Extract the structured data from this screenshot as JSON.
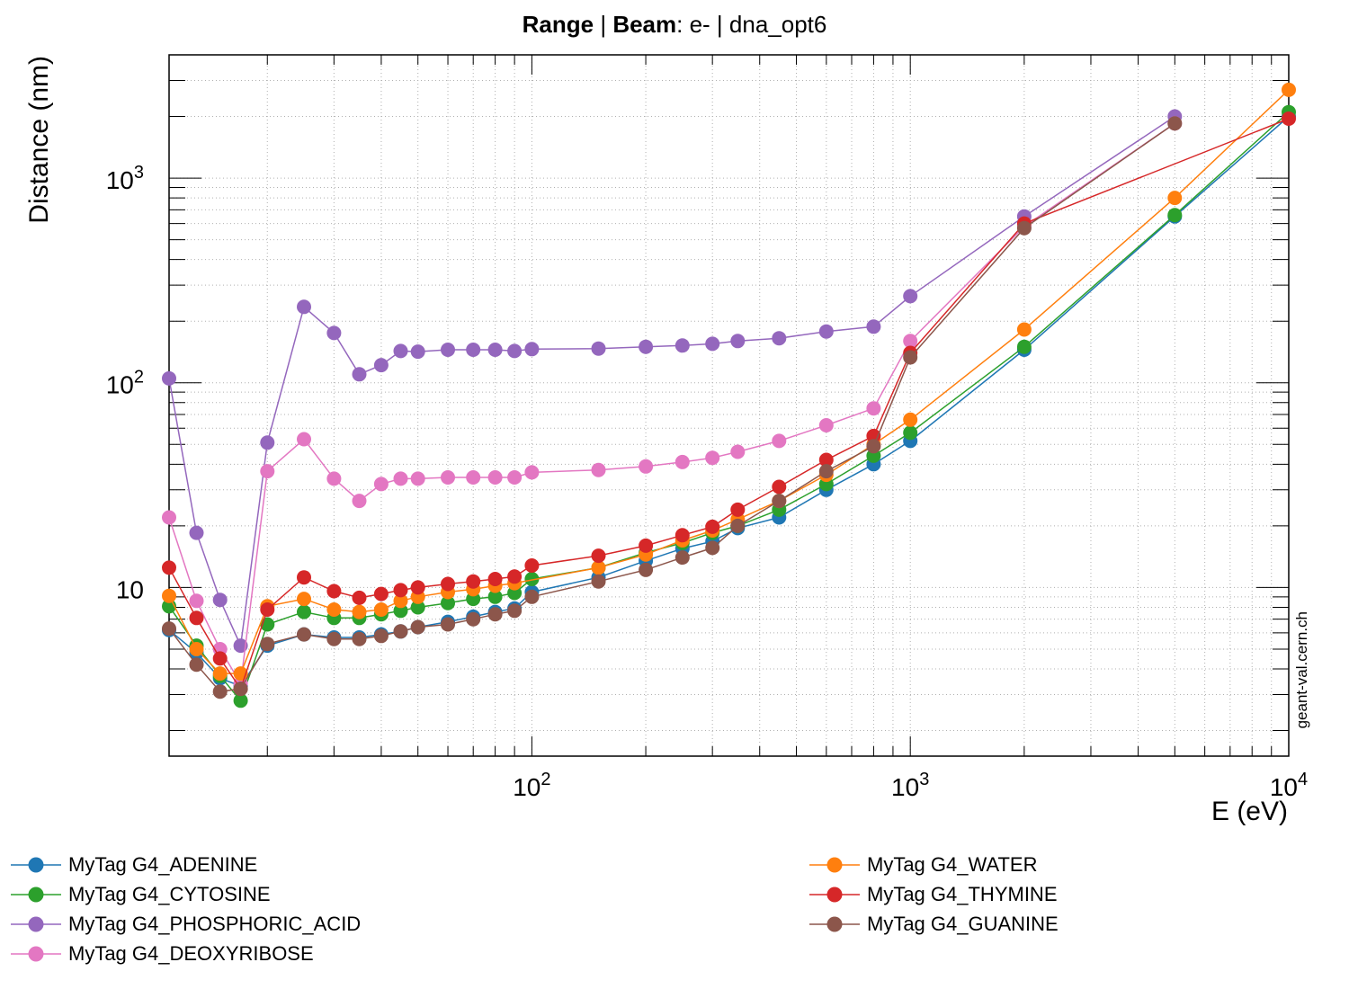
{
  "chart_data": {
    "type": "line",
    "title_parts": [
      {
        "text": "Range",
        "bold": true
      },
      {
        "text": " | ",
        "bold": false
      },
      {
        "text": "Beam",
        "bold": true
      },
      {
        "text": ": e- | dna_opt6",
        "bold": false
      }
    ],
    "xlabel": "E (eV)",
    "ylabel": "Distance (nm)",
    "xscale": "log",
    "yscale": "log",
    "xlim": [
      11,
      10000
    ],
    "ylim": [
      1.5,
      4000
    ],
    "grid": true,
    "x_ticks": [
      {
        "base": "10",
        "exp": "2",
        "v": 100
      },
      {
        "base": "10",
        "exp": "3",
        "v": 1000
      },
      {
        "base": "10",
        "exp": "4",
        "v": 10000
      }
    ],
    "y_ticks": [
      {
        "base": "10",
        "exp": "",
        "v": 10
      },
      {
        "base": "10",
        "exp": "2",
        "v": 100
      },
      {
        "base": "10",
        "exp": "3",
        "v": 1000
      }
    ],
    "watermark": "geant-val.cern.ch",
    "legend_placement": "bottom",
    "x": [
      11,
      13,
      15,
      17,
      20,
      25,
      30,
      35,
      40,
      45,
      50,
      60,
      70,
      80,
      90,
      100,
      150,
      200,
      250,
      300,
      350,
      450,
      600,
      800,
      1000,
      2000,
      5000,
      10000
    ],
    "series": [
      {
        "name": "MyTag G4_ADENINE",
        "color": "#1f77b4",
        "values": [
          6.2,
          4.8,
          3.6,
          3.3,
          5.2,
          5.9,
          5.7,
          5.7,
          5.9,
          6.1,
          6.4,
          6.8,
          7.2,
          7.6,
          7.9,
          9.5,
          11.2,
          13.5,
          15.5,
          16.8,
          19.5,
          22.0,
          30.0,
          40.0,
          52.0,
          145,
          650,
          2000
        ]
      },
      {
        "name": "MyTag G4_CYTOSINE",
        "color": "#2ca02c",
        "values": [
          8.1,
          5.2,
          3.7,
          2.8,
          6.6,
          7.6,
          7.1,
          7.1,
          7.4,
          7.7,
          8.0,
          8.4,
          8.8,
          9.0,
          9.4,
          11.0,
          12.5,
          14.8,
          16.5,
          18.5,
          20.0,
          24.0,
          32.0,
          44.0,
          57.0,
          150,
          660,
          2100
        ]
      },
      {
        "name": "MyTag G4_PHOSPHORIC_ACID",
        "color": "#9467bd",
        "values": [
          105,
          18.5,
          8.7,
          5.2,
          51,
          235,
          175,
          110,
          122,
          143,
          142,
          145,
          145,
          145,
          143,
          146,
          147,
          150,
          152,
          155,
          160,
          165,
          178,
          188,
          265,
          650,
          2000,
          null
        ]
      },
      {
        "name": "MyTag G4_DEOXYRIBOSE",
        "color": "#e377c2",
        "values": [
          22,
          8.6,
          5.0,
          3.4,
          37,
          53,
          34,
          26.5,
          32,
          34,
          34,
          34.5,
          34.5,
          34.5,
          34.5,
          36.5,
          37.5,
          39,
          41,
          43,
          46,
          52,
          62,
          75,
          160,
          580,
          1850,
          null
        ]
      },
      {
        "name": "MyTag G4_WATER",
        "color": "#ff7f0e",
        "values": [
          9.1,
          5.0,
          3.8,
          3.8,
          8.1,
          8.8,
          7.8,
          7.6,
          7.8,
          8.6,
          9.0,
          9.5,
          9.8,
          10.2,
          10.5,
          12.5,
          14.5,
          17.0,
          19.0,
          21.5,
          26.5,
          35.5,
          50.0,
          66.0,
          182,
          800,
          2700,
          null
        ]
      },
      {
        "name": "MyTag G4_THYMINE",
        "color": "#d62728",
        "values": [
          12.5,
          7.1,
          4.5,
          3.2,
          7.8,
          11.2,
          9.6,
          8.9,
          9.3,
          9.7,
          10.0,
          10.4,
          10.7,
          11.0,
          11.3,
          12.8,
          14.3,
          16.0,
          18.0,
          19.8,
          24.0,
          31.0,
          42.0,
          55.0,
          140,
          600,
          1950,
          null
        ]
      },
      {
        "name": "MyTag G4_GUANINE",
        "color": "#8c564b",
        "values": [
          6.3,
          4.2,
          3.1,
          3.2,
          5.3,
          5.9,
          5.6,
          5.6,
          5.8,
          6.1,
          6.4,
          6.6,
          7.0,
          7.4,
          7.7,
          9.0,
          10.7,
          12.2,
          14.0,
          15.6,
          20.0,
          26.5,
          37.0,
          49.0,
          133,
          570,
          1850,
          null
        ]
      }
    ],
    "series_x_overrides": {
      "MyTag G4_PHOSPHORIC_ACID": [
        11,
        13,
        15,
        17,
        20,
        25,
        30,
        35,
        40,
        45,
        50,
        60,
        70,
        80,
        90,
        100,
        150,
        200,
        250,
        300,
        350,
        450,
        600,
        800,
        1000,
        2000,
        5000,
        10000
      ],
      "MyTag G4_DEOXYRIBOSE": [
        11,
        13,
        15,
        17,
        20,
        25,
        30,
        35,
        40,
        45,
        50,
        60,
        70,
        80,
        90,
        100,
        150,
        200,
        250,
        300,
        350,
        450,
        600,
        800,
        1000,
        2000,
        5000,
        10000
      ],
      "MyTag G4_WATER": [
        11,
        13,
        15,
        17,
        20,
        25,
        30,
        35,
        40,
        45,
        50,
        60,
        70,
        80,
        90,
        150,
        200,
        250,
        300,
        350,
        450,
        600,
        800,
        1000,
        2000,
        5000,
        10000
      ],
      "MyTag G4_THYMINE": [
        11,
        13,
        15,
        17,
        20,
        25,
        30,
        35,
        40,
        45,
        50,
        60,
        70,
        80,
        90,
        100,
        150,
        200,
        250,
        300,
        350,
        450,
        600,
        800,
        1000,
        2000,
        10000
      ],
      "MyTag G4_GUANINE": [
        11,
        13,
        15,
        17,
        20,
        25,
        30,
        35,
        40,
        45,
        50,
        60,
        70,
        80,
        90,
        100,
        150,
        200,
        250,
        300,
        350,
        450,
        600,
        800,
        1000,
        2000,
        5000,
        10000
      ]
    }
  },
  "legend": {
    "items": [
      {
        "label": "MyTag G4_ADENINE",
        "color": "#1f77b4"
      },
      {
        "label": "MyTag G4_CYTOSINE",
        "color": "#2ca02c"
      },
      {
        "label": "MyTag G4_PHOSPHORIC_ACID",
        "color": "#9467bd"
      },
      {
        "label": "MyTag G4_DEOXYRIBOSE",
        "color": "#e377c2"
      },
      {
        "label": "MyTag G4_WATER",
        "color": "#ff7f0e"
      },
      {
        "label": "MyTag G4_THYMINE",
        "color": "#d62728"
      },
      {
        "label": "MyTag G4_GUANINE",
        "color": "#8c564b"
      }
    ]
  }
}
